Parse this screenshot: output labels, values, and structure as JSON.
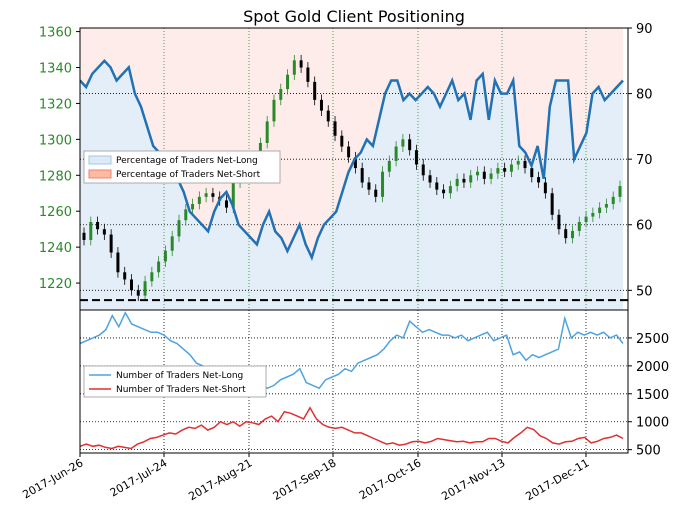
{
  "colors": {
    "price_axis": "#2a8a2a",
    "pct_line": "#2171b5",
    "long_line": "#4ea3e0",
    "short_line": "#e03030",
    "up_candle": "#2a8a2a",
    "down_candle": "#000000",
    "long_fill": "#deebf7",
    "short_fill": "#fde0dd"
  },
  "chart_data": [
    {
      "type": "line",
      "title": "Spot Gold Client Positioning",
      "left_axis": {
        "ticks": [
          1220,
          1240,
          1260,
          1280,
          1300,
          1320,
          1340,
          1360
        ],
        "ylim": [
          1205,
          1362
        ]
      },
      "right_axis": {
        "ticks": [
          50,
          60,
          70,
          80,
          90
        ],
        "ylim": [
          47,
          90
        ]
      },
      "x_ticks": [
        "2017-Jun-26",
        "2017-Jul-24",
        "2017-Aug-21",
        "2017-Sep-18",
        "2017-Oct-16",
        "2017-Nov-13",
        "2017-Dec-11"
      ],
      "legend": [
        "Percentage of Traders Net-Long",
        "Percentage of Traders Net-Short"
      ],
      "grid": true,
      "reference_line": 48.5,
      "series_pct_long": [
        82,
        81,
        83,
        84,
        85,
        84,
        82,
        83,
        84,
        80,
        78,
        75,
        72,
        71,
        70,
        68,
        67,
        65,
        62,
        61,
        60,
        59,
        62,
        64,
        65,
        63,
        60,
        59,
        58,
        57,
        60,
        62,
        59,
        58,
        56,
        58,
        60,
        57,
        55,
        58,
        60,
        61,
        62,
        65,
        68,
        70,
        71,
        73,
        72,
        76,
        80,
        82,
        82,
        79,
        80,
        79,
        80,
        81,
        80,
        78,
        80,
        82,
        79,
        80,
        76,
        82,
        83,
        76,
        82,
        80,
        80,
        82,
        72,
        71,
        69,
        72,
        67,
        78,
        82,
        82,
        82,
        70,
        72,
        74,
        80,
        81,
        79,
        80,
        81,
        82
      ],
      "series_price": [
        1244,
        1254,
        1250,
        1247,
        1237,
        1226,
        1222,
        1216,
        1213,
        1221,
        1226,
        1232,
        1238,
        1246,
        1255,
        1261,
        1264,
        1268,
        1270,
        1268,
        1266,
        1262,
        1276,
        1282,
        1290,
        1285,
        1298,
        1310,
        1322,
        1328,
        1336,
        1344,
        1340,
        1332,
        1322,
        1316,
        1310,
        1302,
        1296,
        1290,
        1284,
        1276,
        1272,
        1268,
        1282,
        1288,
        1296,
        1300,
        1294,
        1286,
        1280,
        1276,
        1272,
        1270,
        1274,
        1278,
        1276,
        1280,
        1282,
        1278,
        1281,
        1284,
        1282,
        1286,
        1288,
        1284,
        1279,
        1276,
        1270,
        1258,
        1250,
        1245,
        1249,
        1254,
        1257,
        1259,
        1262,
        1264,
        1268,
        1274
      ]
    },
    {
      "type": "line",
      "right_axis": {
        "ticks": [
          500,
          1000,
          1500,
          2000,
          2500
        ],
        "ylim": [
          440,
          3000
        ]
      },
      "legend": [
        "Number of Traders Net-Long",
        "Number of Traders Net-Short"
      ],
      "grid": true,
      "series": [
        {
          "name": "Number of Traders Net-Long",
          "values": [
            2400,
            2450,
            2500,
            2550,
            2650,
            2900,
            2700,
            2950,
            2750,
            2700,
            2650,
            2600,
            2600,
            2550,
            2450,
            2400,
            2300,
            2200,
            2050,
            2000,
            1900,
            1850,
            1800,
            1750,
            1700,
            1700,
            1650,
            1650,
            1650,
            1600,
            1650,
            1750,
            1800,
            1850,
            1950,
            1700,
            1650,
            1600,
            1750,
            1800,
            1850,
            1950,
            1900,
            2050,
            2100,
            2150,
            2200,
            2300,
            2450,
            2550,
            2500,
            2800,
            2700,
            2600,
            2650,
            2600,
            2550,
            2550,
            2500,
            2550,
            2450,
            2500,
            2550,
            2600,
            2450,
            2500,
            2550,
            2200,
            2250,
            2100,
            2200,
            2150,
            2200,
            2250,
            2300,
            2850,
            2500,
            2600,
            2550,
            2600,
            2550,
            2600,
            2500,
            2550,
            2400
          ]
        },
        {
          "name": "Number of Traders Net-Short",
          "values": [
            560,
            600,
            560,
            580,
            540,
            520,
            560,
            540,
            520,
            600,
            640,
            700,
            720,
            760,
            800,
            780,
            850,
            900,
            880,
            940,
            850,
            900,
            1000,
            950,
            1000,
            920,
            1000,
            980,
            950,
            1050,
            1100,
            1000,
            1180,
            1150,
            1100,
            1050,
            1250,
            1050,
            950,
            900,
            880,
            900,
            850,
            800,
            800,
            750,
            700,
            650,
            600,
            620,
            580,
            600,
            640,
            650,
            620,
            650,
            700,
            680,
            660,
            640,
            650,
            620,
            640,
            640,
            700,
            700,
            650,
            620,
            720,
            800,
            900,
            860,
            750,
            700,
            620,
            600,
            640,
            650,
            700,
            720,
            620,
            650,
            700,
            720,
            760,
            700
          ]
        }
      ]
    }
  ]
}
